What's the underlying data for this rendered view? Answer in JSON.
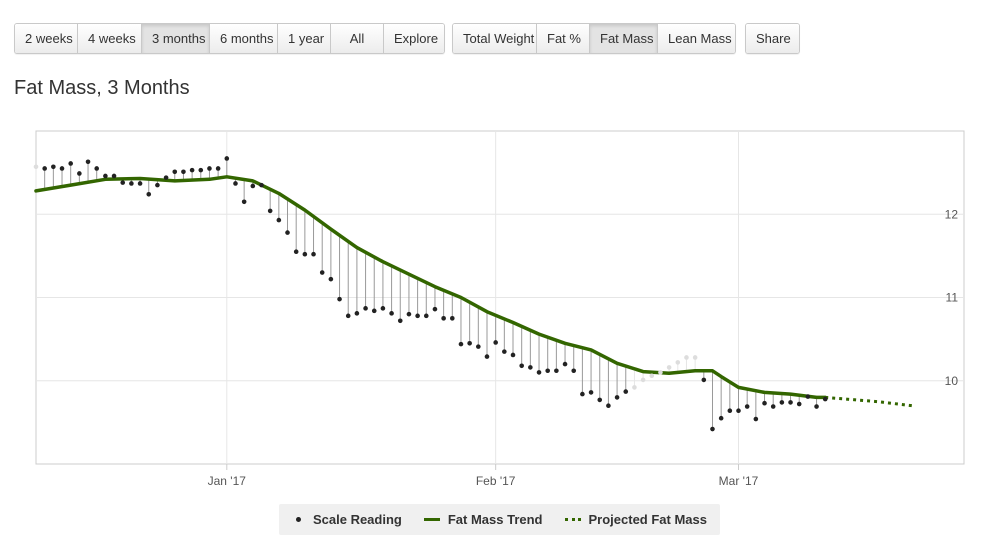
{
  "toolbar": {
    "ranges": [
      {
        "label": "2 weeks",
        "active": false
      },
      {
        "label": "4 weeks",
        "active": false
      },
      {
        "label": "3 months",
        "active": true
      },
      {
        "label": "6 months",
        "active": false
      },
      {
        "label": "1 year",
        "active": false
      },
      {
        "label": "All",
        "active": false
      },
      {
        "label": "Explore",
        "active": false
      }
    ],
    "metrics": [
      {
        "label": "Total Weight",
        "active": false
      },
      {
        "label": "Fat %",
        "active": false
      },
      {
        "label": "Fat Mass",
        "active": true
      },
      {
        "label": "Lean Mass",
        "active": false
      }
    ],
    "share_label": "Share"
  },
  "colors": {
    "trend": "#336600",
    "reading": "#222222",
    "reading_faint": "#dddddd",
    "drop_line": "#999999",
    "grid": "#e6e6e6"
  },
  "chart_data": {
    "type": "line",
    "title": "Fat Mass, 3 Months",
    "x_tick_labels": [
      "Jan '17",
      "Feb '17",
      "Mar '17"
    ],
    "x_ticks": [
      "2017-01-01",
      "2017-02-01",
      "2017-03-01"
    ],
    "xlim": [
      "2016-12-10",
      "2017-03-27"
    ],
    "y_ticks": [
      10,
      11,
      12
    ],
    "ylim": [
      9.0,
      13.0
    ],
    "grid": true,
    "legend_position": "bottom",
    "legend": [
      "Scale Reading",
      "Fat Mass Trend",
      "Projected Fat Mass"
    ],
    "scale_reading": {
      "name": "Scale Reading",
      "dates": [
        "2016-12-10",
        "2016-12-11",
        "2016-12-12",
        "2016-12-13",
        "2016-12-14",
        "2016-12-15",
        "2016-12-16",
        "2016-12-17",
        "2016-12-18",
        "2016-12-19",
        "2016-12-20",
        "2016-12-21",
        "2016-12-22",
        "2016-12-23",
        "2016-12-24",
        "2016-12-25",
        "2016-12-26",
        "2016-12-27",
        "2016-12-28",
        "2016-12-29",
        "2016-12-30",
        "2016-12-31",
        "2017-01-01",
        "2017-01-02",
        "2017-01-03",
        "2017-01-04",
        "2017-01-05",
        "2017-01-06",
        "2017-01-07",
        "2017-01-08",
        "2017-01-09",
        "2017-01-10",
        "2017-01-11",
        "2017-01-12",
        "2017-01-13",
        "2017-01-14",
        "2017-01-15",
        "2017-01-16",
        "2017-01-17",
        "2017-01-18",
        "2017-01-19",
        "2017-01-20",
        "2017-01-21",
        "2017-01-22",
        "2017-01-23",
        "2017-01-24",
        "2017-01-25",
        "2017-01-26",
        "2017-01-27",
        "2017-01-28",
        "2017-01-29",
        "2017-01-30",
        "2017-01-31",
        "2017-02-01",
        "2017-02-02",
        "2017-02-03",
        "2017-02-04",
        "2017-02-05",
        "2017-02-06",
        "2017-02-07",
        "2017-02-08",
        "2017-02-09",
        "2017-02-10",
        "2017-02-11",
        "2017-02-12",
        "2017-02-13",
        "2017-02-14",
        "2017-02-15",
        "2017-02-16",
        "2017-02-17",
        "2017-02-18",
        "2017-02-19",
        "2017-02-20",
        "2017-02-21",
        "2017-02-22",
        "2017-02-23",
        "2017-02-24",
        "2017-02-25",
        "2017-02-26",
        "2017-02-27",
        "2017-02-28",
        "2017-03-01",
        "2017-03-02",
        "2017-03-03",
        "2017-03-04",
        "2017-03-05",
        "2017-03-06",
        "2017-03-07",
        "2017-03-08",
        "2017-03-09",
        "2017-03-10",
        "2017-03-11"
      ],
      "values": [
        12.57,
        12.55,
        12.57,
        12.55,
        12.61,
        12.49,
        12.63,
        12.55,
        12.46,
        12.46,
        12.38,
        12.37,
        12.37,
        12.24,
        12.35,
        12.44,
        12.51,
        12.51,
        12.53,
        12.53,
        12.55,
        12.55,
        12.67,
        12.37,
        12.15,
        12.34,
        12.35,
        12.04,
        11.93,
        11.78,
        11.55,
        11.52,
        11.52,
        11.3,
        11.22,
        10.98,
        10.78,
        10.81,
        10.87,
        10.84,
        10.87,
        10.81,
        10.72,
        10.8,
        10.78,
        10.78,
        10.86,
        10.75,
        10.75,
        10.44,
        10.45,
        10.41,
        10.29,
        10.46,
        10.35,
        10.31,
        10.18,
        10.16,
        10.1,
        10.12,
        10.12,
        10.2,
        10.12,
        9.84,
        9.86,
        9.77,
        9.7,
        9.8,
        9.87,
        9.92,
        10.01,
        10.06,
        10.1,
        10.16,
        10.22,
        10.28,
        10.28,
        10.01,
        9.42,
        9.55,
        9.64,
        9.64,
        9.69,
        9.54,
        9.73,
        9.69,
        9.74,
        9.74,
        9.72,
        9.81,
        9.69,
        9.78
      ],
      "faint_dates": [
        "2016-12-10",
        "2017-02-17",
        "2017-02-18",
        "2017-02-19",
        "2017-02-20",
        "2017-02-21",
        "2017-02-22",
        "2017-02-23",
        "2017-02-24"
      ]
    },
    "series": [
      {
        "name": "Fat Mass Trend",
        "style": "solid",
        "dates": [
          "2016-12-10",
          "2016-12-14",
          "2016-12-18",
          "2016-12-22",
          "2016-12-26",
          "2016-12-30",
          "2017-01-01",
          "2017-01-04",
          "2017-01-07",
          "2017-01-10",
          "2017-01-13",
          "2017-01-16",
          "2017-01-19",
          "2017-01-22",
          "2017-01-25",
          "2017-01-28",
          "2017-01-31",
          "2017-02-03",
          "2017-02-06",
          "2017-02-09",
          "2017-02-12",
          "2017-02-15",
          "2017-02-18",
          "2017-02-21",
          "2017-02-24",
          "2017-02-26",
          "2017-02-27",
          "2017-03-01",
          "2017-03-04",
          "2017-03-07",
          "2017-03-10",
          "2017-03-11"
        ],
        "values": [
          12.28,
          12.35,
          12.42,
          12.43,
          12.4,
          12.42,
          12.45,
          12.4,
          12.25,
          12.05,
          11.82,
          11.6,
          11.43,
          11.28,
          11.13,
          11.0,
          10.83,
          10.7,
          10.56,
          10.45,
          10.37,
          10.21,
          10.11,
          10.09,
          10.12,
          10.12,
          10.05,
          9.92,
          9.86,
          9.84,
          9.8,
          9.8
        ]
      },
      {
        "name": "Projected Fat Mass",
        "style": "dotted",
        "dates": [
          "2017-03-11",
          "2017-03-17",
          "2017-03-21"
        ],
        "values": [
          9.8,
          9.75,
          9.7
        ]
      }
    ]
  },
  "legend_labels": {
    "scale_reading": "Scale Reading",
    "trend": "Fat Mass Trend",
    "projected": "Projected Fat Mass"
  }
}
